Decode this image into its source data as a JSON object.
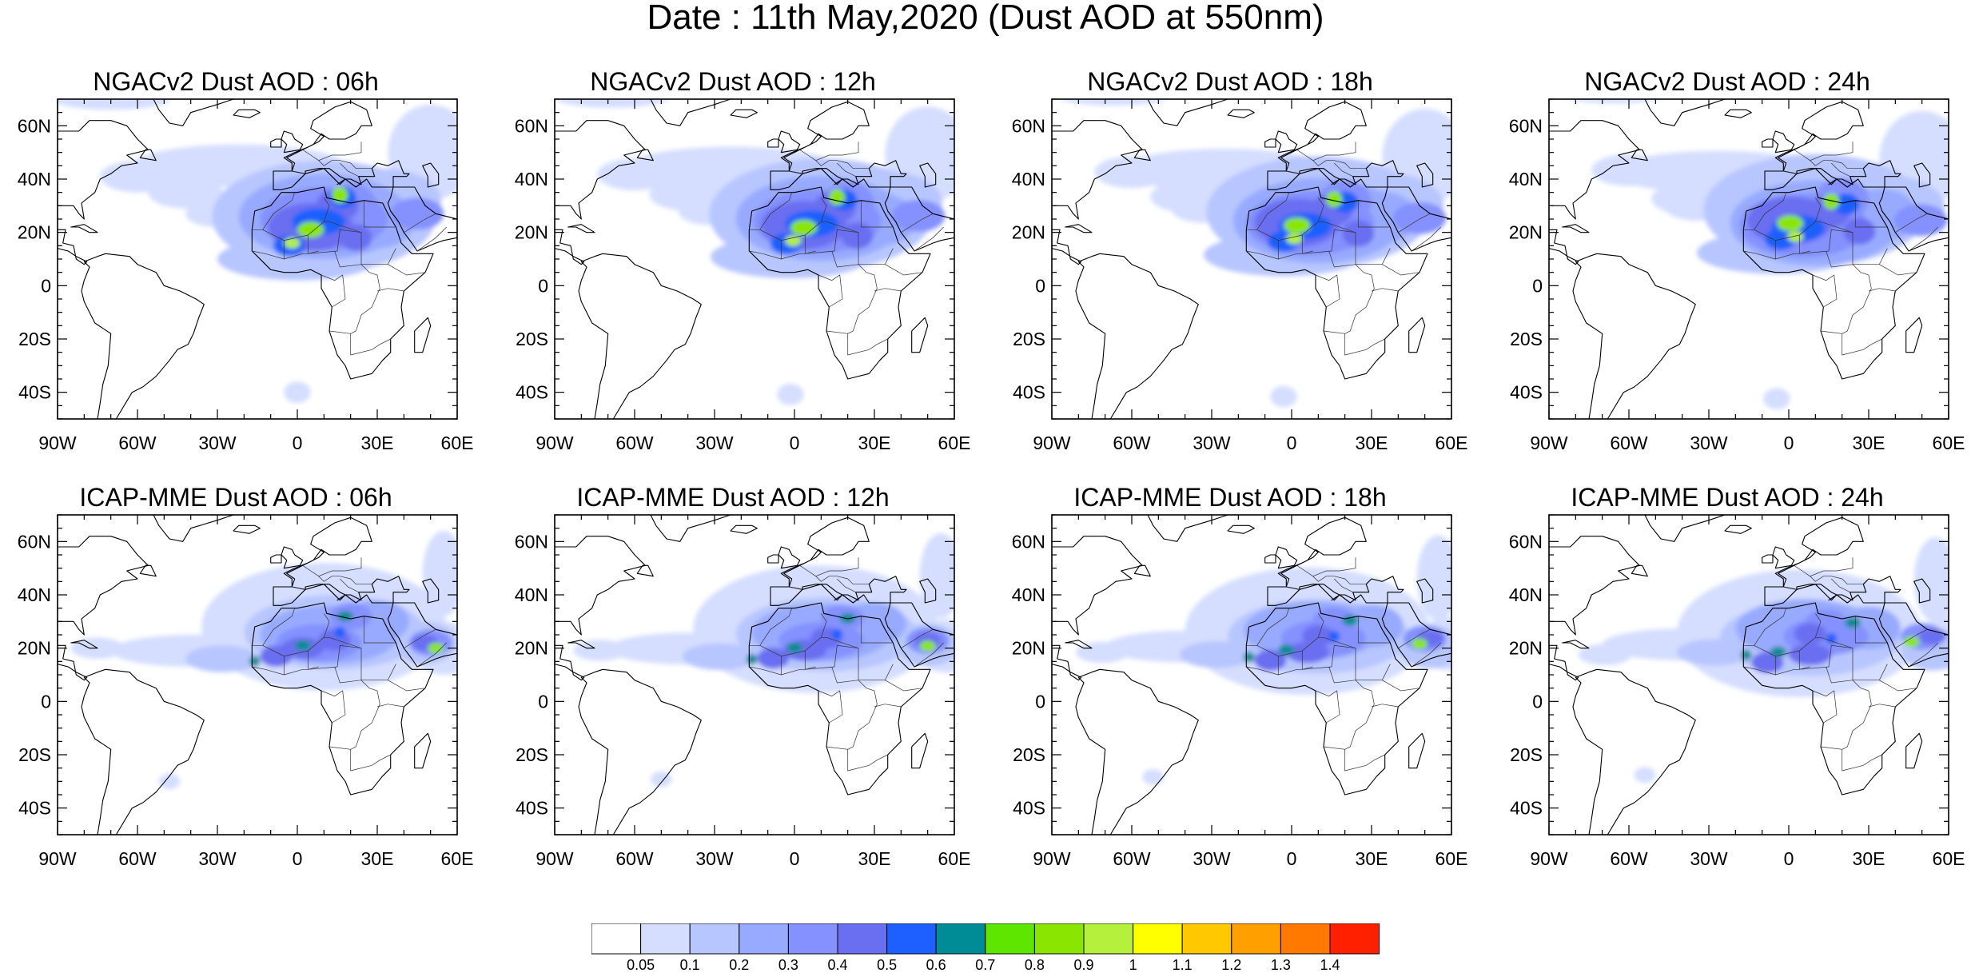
{
  "title": "Date : 11th May,2020 (Dust AOD at 550nm)",
  "map_extent": {
    "lon_min": -90,
    "lon_max": 60,
    "lat_min": -50,
    "lat_max": 70
  },
  "lat_ticks": [
    {
      "value": 60,
      "label": "60N"
    },
    {
      "value": 40,
      "label": "40N"
    },
    {
      "value": 20,
      "label": "20N"
    },
    {
      "value": 0,
      "label": "0"
    },
    {
      "value": -20,
      "label": "20S"
    },
    {
      "value": -40,
      "label": "40S"
    }
  ],
  "lon_ticks": [
    {
      "value": -90,
      "label": "90W"
    },
    {
      "value": -60,
      "label": "60W"
    },
    {
      "value": -30,
      "label": "30W"
    },
    {
      "value": 0,
      "label": "0"
    },
    {
      "value": 30,
      "label": "30E"
    },
    {
      "value": 60,
      "label": "60E"
    }
  ],
  "panels": [
    {
      "title": "NGACv2 Dust AOD : 06h",
      "model": "ngac",
      "hour": 6
    },
    {
      "title": "NGACv2 Dust AOD : 12h",
      "model": "ngac",
      "hour": 12
    },
    {
      "title": "NGACv2 Dust AOD : 18h",
      "model": "ngac",
      "hour": 18
    },
    {
      "title": "NGACv2 Dust AOD : 24h",
      "model": "ngac",
      "hour": 24
    },
    {
      "title": "ICAP-MME Dust AOD : 06h",
      "model": "icap",
      "hour": 6
    },
    {
      "title": "ICAP-MME Dust AOD : 12h",
      "model": "icap",
      "hour": 12
    },
    {
      "title": "ICAP-MME Dust AOD : 18h",
      "model": "icap",
      "hour": 18
    },
    {
      "title": "ICAP-MME Dust AOD : 24h",
      "model": "icap",
      "hour": 24
    }
  ],
  "colorbar": {
    "levels": [
      "0.05",
      "0.1",
      "0.2",
      "0.3",
      "0.4",
      "0.5",
      "0.6",
      "0.7",
      "0.8",
      "0.9",
      "1",
      "1.1",
      "1.2",
      "1.3",
      "1.4"
    ],
    "colors": [
      "#ffffff",
      "#d5deff",
      "#b8c6ff",
      "#98aaff",
      "#8491ff",
      "#6a6ef0",
      "#1e5fff",
      "#008c96",
      "#5fe600",
      "#8ae600",
      "#b4f03c",
      "#ffff00",
      "#ffc800",
      "#ffa000",
      "#ff7800",
      "#ff2000"
    ]
  }
}
